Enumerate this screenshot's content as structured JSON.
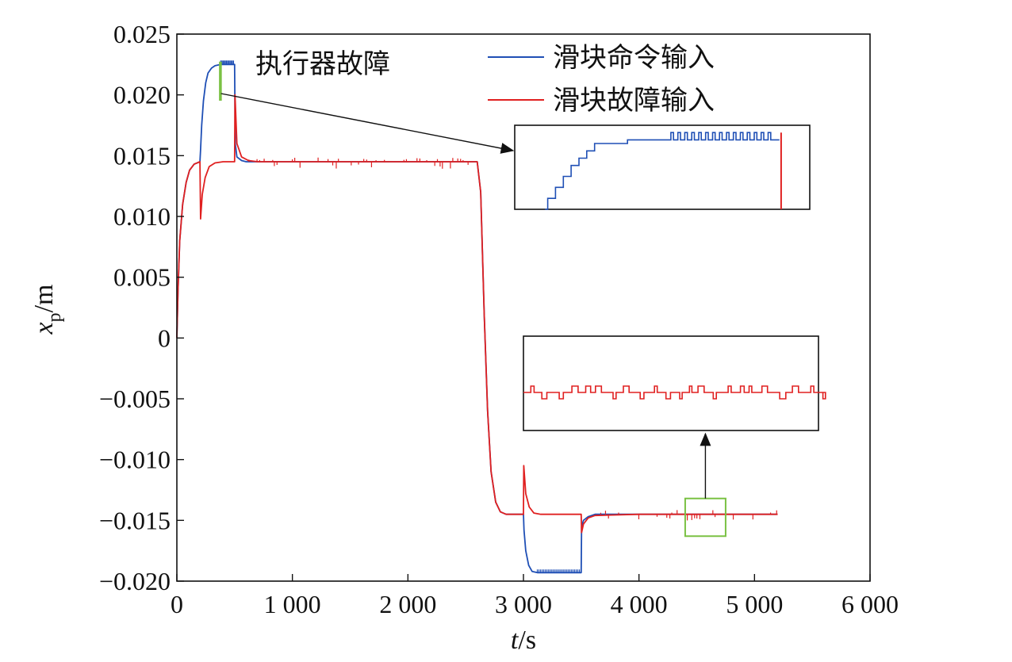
{
  "chart_data": {
    "type": "line",
    "xlabel": "t/s",
    "ylabel": "x_p/m",
    "xlim": [
      0,
      6000
    ],
    "ylim": [
      -0.02,
      0.025
    ],
    "x_ticks": [
      0,
      1000,
      2000,
      3000,
      4000,
      5000,
      6000
    ],
    "x_tick_labels": [
      "0",
      "1 000",
      "2 000",
      "3 000",
      "4 000",
      "5 000",
      "6 000"
    ],
    "y_ticks": [
      0.025,
      0.02,
      0.015,
      0.01,
      0.005,
      0,
      -0.005,
      -0.01,
      -0.015,
      -0.02
    ],
    "y_tick_labels": [
      "0.025",
      "0.020",
      "0.015",
      "0.010",
      "0.005",
      "0",
      "−0.005",
      "−0.010",
      "−0.015",
      "−0.020"
    ],
    "grid": false,
    "legend_position": "top-right",
    "annotation": "执行器故障",
    "colors": {
      "command": "#1f4fb5",
      "fault": "#e02020",
      "highlight_box": "#7ac143",
      "axis": "#111111"
    },
    "series": [
      {
        "name": "滑块命令输入",
        "color": "#1f4fb5",
        "points": [
          [
            0,
            0
          ],
          [
            10,
            0.004
          ],
          [
            25,
            0.008
          ],
          [
            50,
            0.011
          ],
          [
            80,
            0.0128
          ],
          [
            110,
            0.0138
          ],
          [
            150,
            0.0143
          ],
          [
            200,
            0.0145
          ],
          [
            205,
            0.0155
          ],
          [
            215,
            0.0175
          ],
          [
            230,
            0.0195
          ],
          [
            250,
            0.021
          ],
          [
            270,
            0.0218
          ],
          [
            300,
            0.0222
          ],
          [
            330,
            0.0224
          ],
          [
            380,
            0.0225
          ],
          [
            500,
            0.0225
          ],
          [
            505,
            0.016
          ],
          [
            520,
            0.0149
          ],
          [
            560,
            0.0146
          ],
          [
            600,
            0.0145
          ],
          [
            1000,
            0.0145
          ],
          [
            2000,
            0.0145
          ],
          [
            2600,
            0.0145
          ],
          [
            2630,
            0.012
          ],
          [
            2660,
            0.002
          ],
          [
            2690,
            -0.006
          ],
          [
            2720,
            -0.011
          ],
          [
            2760,
            -0.0135
          ],
          [
            2800,
            -0.0143
          ],
          [
            2850,
            -0.0145
          ],
          [
            3000,
            -0.0145
          ],
          [
            3005,
            -0.0158
          ],
          [
            3020,
            -0.0175
          ],
          [
            3045,
            -0.0187
          ],
          [
            3075,
            -0.0192
          ],
          [
            3120,
            -0.0193
          ],
          [
            3500,
            -0.0193
          ],
          [
            3503,
            -0.0155
          ],
          [
            3520,
            -0.015
          ],
          [
            3560,
            -0.0147
          ],
          [
            3620,
            -0.0145
          ],
          [
            4000,
            -0.0145
          ],
          [
            5000,
            -0.0145
          ],
          [
            5200,
            -0.0145
          ]
        ]
      },
      {
        "name": "滑块故障输入",
        "color": "#e02020",
        "points": [
          [
            0,
            0
          ],
          [
            10,
            0.004
          ],
          [
            25,
            0.008
          ],
          [
            50,
            0.011
          ],
          [
            80,
            0.0128
          ],
          [
            110,
            0.0138
          ],
          [
            150,
            0.0143
          ],
          [
            200,
            0.0145
          ],
          [
            205,
            0.0098
          ],
          [
            220,
            0.0118
          ],
          [
            245,
            0.0132
          ],
          [
            280,
            0.0141
          ],
          [
            330,
            0.0144
          ],
          [
            400,
            0.0145
          ],
          [
            500,
            0.0145
          ],
          [
            503,
            0.02
          ],
          [
            520,
            0.016
          ],
          [
            560,
            0.0149
          ],
          [
            620,
            0.0146
          ],
          [
            700,
            0.0145
          ],
          [
            1000,
            0.0145
          ],
          [
            2000,
            0.0145
          ],
          [
            2600,
            0.0145
          ],
          [
            2630,
            0.012
          ],
          [
            2660,
            0.002
          ],
          [
            2690,
            -0.006
          ],
          [
            2720,
            -0.011
          ],
          [
            2760,
            -0.0135
          ],
          [
            2800,
            -0.0143
          ],
          [
            2850,
            -0.0145
          ],
          [
            3000,
            -0.0145
          ],
          [
            3003,
            -0.0105
          ],
          [
            3020,
            -0.0128
          ],
          [
            3050,
            -0.0139
          ],
          [
            3090,
            -0.0144
          ],
          [
            3150,
            -0.0145
          ],
          [
            3500,
            -0.0145
          ],
          [
            3503,
            -0.016
          ],
          [
            3520,
            -0.0153
          ],
          [
            3560,
            -0.0148
          ],
          [
            3620,
            -0.0146
          ],
          [
            4000,
            -0.0145
          ],
          [
            5000,
            -0.0145
          ],
          [
            5200,
            -0.0145
          ]
        ]
      }
    ],
    "zoom_regions": [
      {
        "x": [
          200,
          540
        ],
        "y": [
          0.0205,
          0.0228
        ],
        "target": "inset-top"
      },
      {
        "x": [
          4400,
          4750
        ],
        "y": [
          -0.0163,
          -0.0132
        ],
        "target": "inset-bottom"
      }
    ]
  }
}
